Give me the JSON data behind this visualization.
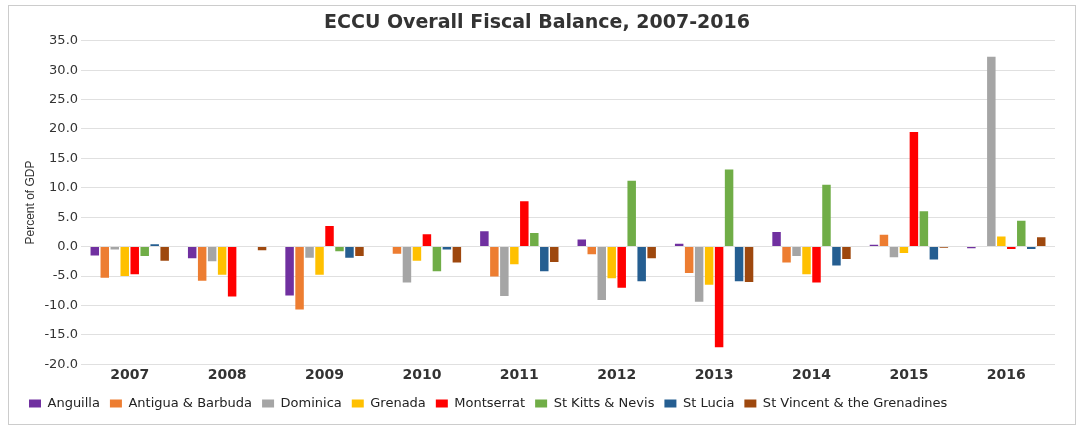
{
  "chart_data": {
    "type": "bar",
    "title": "ECCU Overall Fiscal Balance, 2007-2016",
    "ylabel": "Percent of GDP",
    "categories": [
      "2007",
      "2008",
      "2009",
      "2010",
      "2011",
      "2012",
      "2013",
      "2014",
      "2015",
      "2016"
    ],
    "series": [
      {
        "name": "Anguilla",
        "color": "#7030a0",
        "values": [
          -1.5,
          -2.0,
          -8.3,
          0.0,
          2.6,
          1.2,
          0.5,
          2.5,
          0.3,
          -0.3
        ]
      },
      {
        "name": "Antigua & Barbuda",
        "color": "#ed7d31",
        "values": [
          -5.3,
          -5.8,
          -10.7,
          -1.2,
          -5.1,
          -1.3,
          -4.5,
          -2.7,
          2.0,
          0.0
        ]
      },
      {
        "name": "Dominica",
        "color": "#a5a5a5",
        "values": [
          -0.5,
          -2.5,
          -1.9,
          -6.1,
          -8.4,
          -9.1,
          -9.4,
          -1.6,
          -1.8,
          32.3
        ]
      },
      {
        "name": "Grenada",
        "color": "#ffc000",
        "values": [
          -5.0,
          -4.8,
          -4.8,
          -2.4,
          -3.0,
          -5.4,
          -6.5,
          -4.7,
          -1.1,
          1.7
        ]
      },
      {
        "name": "Montserrat",
        "color": "#ff0000",
        "values": [
          -4.7,
          -8.5,
          3.5,
          2.1,
          7.7,
          -7.0,
          -17.1,
          -6.1,
          19.5,
          -0.4
        ]
      },
      {
        "name": "St Kitts & Nevis",
        "color": "#70ad47",
        "values": [
          -1.6,
          null,
          -0.8,
          -4.2,
          2.3,
          11.2,
          13.1,
          10.5,
          6.0,
          4.4
        ]
      },
      {
        "name": "St Lucia",
        "color": "#255e91",
        "values": [
          0.4,
          0.0,
          -1.9,
          -0.5,
          -4.2,
          -5.9,
          -5.9,
          -3.2,
          -2.2,
          -0.4
        ]
      },
      {
        "name": "St Vincent & the Grenadines",
        "color": "#9e480e",
        "values": [
          -2.4,
          -0.6,
          -1.6,
          -2.7,
          -2.6,
          -2.0,
          -6.0,
          -2.1,
          -0.2,
          1.6
        ]
      }
    ],
    "ylim": [
      -20,
      35
    ],
    "yticks": [
      {
        "value": -20,
        "label": "-20.0"
      },
      {
        "value": -15,
        "label": "-15.0"
      },
      {
        "value": -10,
        "label": "-10.0"
      },
      {
        "value": -5,
        "label": "-5.0"
      },
      {
        "value": 0,
        "label": "0.0"
      },
      {
        "value": 5,
        "label": "5.0"
      },
      {
        "value": 10,
        "label": "10.0"
      },
      {
        "value": 15,
        "label": "15.0"
      },
      {
        "value": 20,
        "label": "20.0"
      },
      {
        "value": 25,
        "label": "25.0"
      },
      {
        "value": 30,
        "label": "30.0"
      },
      {
        "value": 35,
        "label": "35.0"
      }
    ],
    "grid": "y",
    "legend": "bottom"
  }
}
